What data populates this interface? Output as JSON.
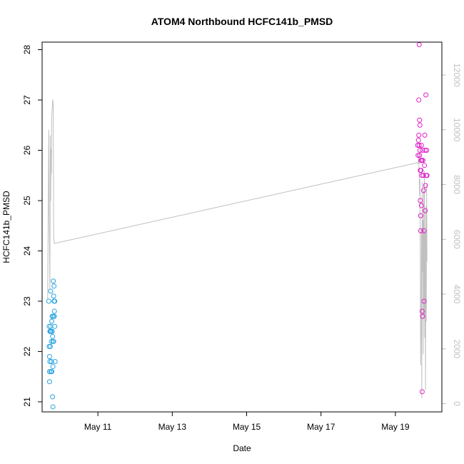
{
  "chart_data": {
    "type": "scatter",
    "title": "ATOM4 Northbound HCFC141b_PMSD",
    "xlabel": "Date",
    "ylabel": "HCFC141b_PMSD",
    "x_ticks": [
      "May 11",
      "May 13",
      "May 15",
      "May 17",
      "May 19"
    ],
    "x_tick_values": [
      11,
      13,
      15,
      17,
      19
    ],
    "xlim": [
      9.5,
      20.25
    ],
    "ylim": [
      20.8,
      28.15
    ],
    "y_ticks": [
      21,
      22,
      23,
      24,
      25,
      26,
      27,
      28
    ],
    "y2_ticks": [
      0,
      2000,
      4000,
      6000,
      8000,
      10000,
      12000
    ],
    "y2lim": [
      -300,
      13200
    ],
    "grid": false,
    "series": [
      {
        "color": "#29a3e0",
        "points": [
          [
            9.68,
            23.0
          ],
          [
            9.69,
            22.5
          ],
          [
            9.69,
            22.1
          ],
          [
            9.7,
            21.9
          ],
          [
            9.7,
            21.6
          ],
          [
            9.7,
            21.4
          ],
          [
            9.71,
            22.4
          ],
          [
            9.71,
            21.8
          ],
          [
            9.72,
            22.4
          ],
          [
            9.72,
            22.1
          ],
          [
            9.73,
            23.2
          ],
          [
            9.73,
            22.5
          ],
          [
            9.74,
            22.4
          ],
          [
            9.74,
            21.6
          ],
          [
            9.75,
            22.2
          ],
          [
            9.75,
            21.8
          ],
          [
            9.76,
            22.6
          ],
          [
            9.76,
            21.6
          ],
          [
            9.77,
            22.7
          ],
          [
            9.77,
            22.4
          ],
          [
            9.78,
            22.3
          ],
          [
            9.78,
            21.1
          ],
          [
            9.79,
            22.2
          ],
          [
            9.79,
            21.7
          ],
          [
            9.8,
            23.4
          ],
          [
            9.8,
            22.7
          ],
          [
            9.81,
            23.1
          ],
          [
            9.81,
            22.2
          ],
          [
            9.82,
            23.3
          ],
          [
            9.82,
            23.0
          ],
          [
            9.83,
            22.8
          ],
          [
            9.83,
            22.7
          ],
          [
            9.84,
            22.5
          ],
          [
            9.84,
            23.0
          ],
          [
            9.85,
            21.8
          ],
          [
            9.79,
            20.9
          ]
        ]
      },
      {
        "color": "#e020c8",
        "points": [
          [
            19.6,
            26.1
          ],
          [
            19.61,
            25.9
          ],
          [
            19.62,
            26.2
          ],
          [
            19.63,
            26.3
          ],
          [
            19.63,
            27.0
          ],
          [
            19.64,
            28.1
          ],
          [
            19.64,
            26.1
          ],
          [
            19.65,
            25.9
          ],
          [
            19.65,
            26.6
          ],
          [
            19.66,
            26.5
          ],
          [
            19.66,
            26.0
          ],
          [
            19.67,
            25.6
          ],
          [
            19.67,
            25.0
          ],
          [
            19.68,
            24.7
          ],
          [
            19.68,
            24.4
          ],
          [
            19.69,
            25.8
          ],
          [
            19.69,
            25.6
          ],
          [
            19.7,
            26.1
          ],
          [
            19.7,
            24.9
          ],
          [
            19.71,
            25.8
          ],
          [
            19.71,
            25.5
          ],
          [
            19.72,
            22.8
          ],
          [
            19.72,
            21.2
          ],
          [
            19.73,
            22.7
          ],
          [
            19.73,
            26.0
          ],
          [
            19.74,
            25.8
          ],
          [
            19.75,
            25.5
          ],
          [
            19.76,
            25.2
          ],
          [
            19.77,
            23.0
          ],
          [
            19.77,
            24.4
          ],
          [
            19.78,
            25.7
          ],
          [
            19.79,
            26.3
          ],
          [
            19.8,
            24.8
          ],
          [
            19.8,
            26.0
          ],
          [
            19.81,
            25.3
          ],
          [
            19.82,
            27.1
          ],
          [
            19.83,
            25.5
          ],
          [
            19.84,
            26.0
          ],
          [
            19.85,
            25.5
          ]
        ]
      }
    ],
    "line_series": {
      "color": "#c0c0c0",
      "axis": "right",
      "points": [
        [
          9.65,
          3800
        ],
        [
          9.66,
          6200
        ],
        [
          9.67,
          8200
        ],
        [
          9.68,
          10000
        ],
        [
          9.69,
          6800
        ],
        [
          9.7,
          5600
        ],
        [
          9.71,
          4200
        ],
        [
          9.72,
          9800
        ],
        [
          9.73,
          7400
        ],
        [
          9.74,
          9300
        ],
        [
          9.75,
          8400
        ],
        [
          9.76,
          10500
        ],
        [
          9.77,
          10700
        ],
        [
          9.78,
          11000
        ],
        [
          9.79,
          11100
        ],
        [
          9.8,
          10800
        ],
        [
          9.81,
          6100
        ],
        [
          9.83,
          5850
        ],
        [
          19.6,
          8800
        ],
        [
          19.61,
          8750
        ],
        [
          19.62,
          8950
        ],
        [
          19.63,
          9100
        ],
        [
          19.64,
          8300
        ],
        [
          19.65,
          7600
        ],
        [
          19.66,
          8200
        ],
        [
          19.67,
          5400
        ],
        [
          19.68,
          1400
        ],
        [
          19.69,
          2800
        ],
        [
          19.7,
          6400
        ],
        [
          19.71,
          200
        ],
        [
          19.72,
          8100
        ],
        [
          19.73,
          4800
        ],
        [
          19.74,
          6700
        ],
        [
          19.75,
          1800
        ],
        [
          19.76,
          7800
        ],
        [
          19.77,
          3200
        ],
        [
          19.78,
          8500
        ],
        [
          19.79,
          2400
        ],
        [
          19.8,
          6300
        ],
        [
          19.81,
          500
        ],
        [
          19.82,
          7200
        ],
        [
          19.83,
          3000
        ],
        [
          19.84,
          8000
        ],
        [
          19.85,
          5200
        ]
      ]
    }
  }
}
